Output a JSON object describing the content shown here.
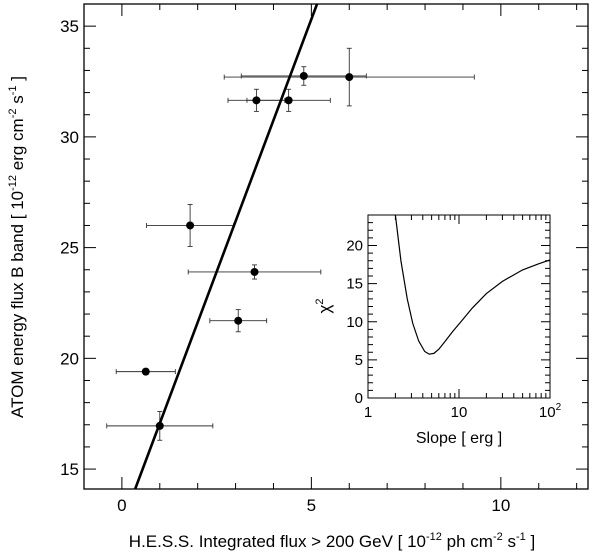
{
  "chart_data": [
    {
      "type": "scatter",
      "xlabel": "H.E.S.S. Integrated flux > 200 GeV [ 10^-12 ph cm^-2 s^-1 ]",
      "xlabel_parts": {
        "main": "H.E.S.S. Integrated flux > 200 GeV [ 10",
        "exp1": "-12",
        "mid1": " ph cm",
        "exp2": "-2",
        "mid2": " s",
        "exp3": "-1",
        "end": " ]"
      },
      "ylabel": "ATOM energy flux B band [ 10^-12 erg cm^-2 s^-1 ]",
      "ylabel_parts": {
        "main": "ATOM energy flux B band [ 10",
        "exp1": "-12",
        "mid1": " erg cm",
        "exp2": "-2",
        "mid2": " s",
        "exp3": "-1",
        "end": " ]"
      },
      "xlim": [
        -1.0,
        12.3
      ],
      "ylim": [
        14.1,
        36.0
      ],
      "x_ticks": [
        0,
        5,
        10
      ],
      "x_tick_labels": [
        "0",
        "5",
        "10"
      ],
      "y_ticks": [
        15,
        20,
        25,
        30,
        35
      ],
      "y_tick_labels": [
        "15",
        "20",
        "25",
        "30",
        "35"
      ],
      "grid": false,
      "points": [
        {
          "x": 0.63,
          "y": 19.4,
          "xerr": 0.78,
          "yerr": 0.12
        },
        {
          "x": 1.0,
          "y": 16.95,
          "xerr": 1.4,
          "yerr": 0.65
        },
        {
          "x": 1.8,
          "y": 26.0,
          "xerr": 1.15,
          "yerr": 0.95
        },
        {
          "x": 3.07,
          "y": 21.7,
          "xerr": 0.75,
          "yerr": 0.5
        },
        {
          "x": 3.5,
          "y": 23.9,
          "xerr": 1.75,
          "yerr": 0.32
        },
        {
          "x": 3.55,
          "y": 31.65,
          "xerr": 0.75,
          "yerr": 0.5
        },
        {
          "x": 4.4,
          "y": 31.65,
          "xerr": 1.1,
          "yerr": 0.5
        },
        {
          "x": 4.8,
          "y": 32.75,
          "xerr": 1.65,
          "yerr": 0.42
        },
        {
          "x": 6.0,
          "y": 32.7,
          "xerr": 3.3,
          "yerr": 1.3
        }
      ],
      "fit_line": {
        "x": [
          0.35,
          5.15
        ],
        "y": [
          14.1,
          36.0
        ]
      }
    },
    {
      "type": "line",
      "xlabel": "Slope [ erg ]",
      "ylabel": "χ²",
      "ylabel_parts": {
        "main": "χ",
        "exp": "2"
      },
      "x_scale": "log",
      "xlim": [
        1,
        100
      ],
      "ylim": [
        0,
        24
      ],
      "x_ticks": [
        1,
        10,
        100
      ],
      "x_tick_labels": [
        {
          "main": "1",
          "exp": ""
        },
        {
          "main": "10",
          "exp": ""
        },
        {
          "main": "10",
          "exp": "2"
        }
      ],
      "y_ticks": [
        0,
        5,
        10,
        15,
        20
      ],
      "y_tick_labels": [
        "0",
        "5",
        "10",
        "15",
        "20"
      ],
      "grid": false,
      "curve": {
        "x": [
          2.0,
          2.3,
          2.7,
          3.1,
          3.6,
          4.2,
          4.7,
          5.3,
          6.0,
          7.0,
          8.5,
          10.5,
          14,
          20,
          30,
          50,
          75,
          100
        ],
        "y": [
          24,
          18,
          13.0,
          9.8,
          7.5,
          6.1,
          5.75,
          5.85,
          6.4,
          7.4,
          8.7,
          10.0,
          11.8,
          13.7,
          15.3,
          16.8,
          17.6,
          18.1
        ]
      }
    }
  ]
}
